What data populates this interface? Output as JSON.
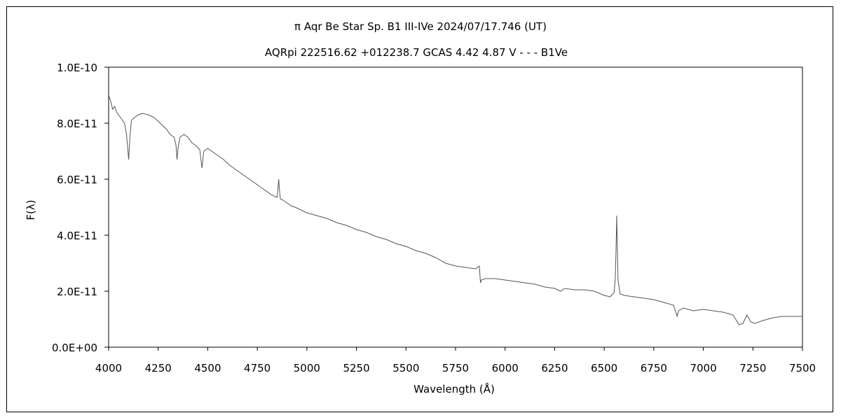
{
  "chart_data": {
    "type": "line",
    "title": "π  Aqr    Be Star    Sp. B1 III-IVe    2024/07/17.746 (UT)",
    "subtitle": "AQRpi 222516.62 +012238.7 GCAS 4.42 4.87 V - - - B1Ve",
    "xlabel": "Wavelength (Å)",
    "ylabel": "F(λ)",
    "xlim": [
      4000,
      7500
    ],
    "ylim": [
      0,
      1e-10
    ],
    "x_ticks": [
      "4000",
      "4250",
      "4500",
      "4750",
      "5000",
      "5250",
      "5500",
      "5750",
      "6000",
      "6250",
      "6500",
      "6750",
      "7000",
      "7250",
      "7500"
    ],
    "y_ticks": [
      "0.0E+00",
      "2.0E-11",
      "4.0E-11",
      "6.0E-11",
      "8.0E-11",
      "1.0E-10"
    ],
    "grid": false,
    "series": [
      {
        "color": "#555555",
        "x": [
          4000,
          4010,
          4020,
          4030,
          4040,
          4050,
          4060,
          4070,
          4080,
          4090,
          4095,
          4101,
          4107,
          4115,
          4130,
          4150,
          4170,
          4200,
          4230,
          4260,
          4290,
          4310,
          4330,
          4340,
          4345,
          4350,
          4360,
          4380,
          4400,
          4420,
          4440,
          4460,
          4471,
          4480,
          4500,
          4520,
          4550,
          4580,
          4610,
          4640,
          4670,
          4700,
          4730,
          4760,
          4790,
          4820,
          4850,
          4858,
          4862,
          4866,
          4880,
          4900,
          4920,
          4940,
          4970,
          5000,
          5050,
          5100,
          5150,
          5200,
          5250,
          5300,
          5350,
          5400,
          5450,
          5500,
          5550,
          5600,
          5650,
          5700,
          5750,
          5800,
          5850,
          5870,
          5876,
          5880,
          5900,
          5920,
          5950,
          6000,
          6050,
          6100,
          6150,
          6200,
          6250,
          6280,
          6300,
          6350,
          6400,
          6450,
          6500,
          6530,
          6550,
          6556,
          6560,
          6563,
          6566,
          6570,
          6580,
          6600,
          6650,
          6700,
          6750,
          6800,
          6850,
          6868,
          6875,
          6900,
          6950,
          7000,
          7050,
          7100,
          7150,
          7180,
          7200,
          7220,
          7240,
          7260,
          7280,
          7300,
          7350,
          7400,
          7450,
          7500
        ],
        "y": [
          9e-11,
          8.8e-11,
          8.5e-11,
          8.6e-11,
          8.4e-11,
          8.3e-11,
          8.2e-11,
          8.1e-11,
          8e-11,
          7.6e-11,
          7.2e-11,
          6.7e-11,
          7.5e-11,
          8.1e-11,
          8.2e-11,
          8.3e-11,
          8.35e-11,
          8.3e-11,
          8.2e-11,
          8e-11,
          7.8e-11,
          7.6e-11,
          7.5e-11,
          7.2e-11,
          6.7e-11,
          7.1e-11,
          7.5e-11,
          7.6e-11,
          7.5e-11,
          7.3e-11,
          7.2e-11,
          7.05e-11,
          6.4e-11,
          7e-11,
          7.1e-11,
          7e-11,
          6.85e-11,
          6.7e-11,
          6.5e-11,
          6.35e-11,
          6.2e-11,
          6.05e-11,
          5.9e-11,
          5.75e-11,
          5.6e-11,
          5.45e-11,
          5.35e-11,
          6e-11,
          5.6e-11,
          5.3e-11,
          5.25e-11,
          5.15e-11,
          5.05e-11,
          5e-11,
          4.9e-11,
          4.8e-11,
          4.7e-11,
          4.6e-11,
          4.45e-11,
          4.35e-11,
          4.2e-11,
          4.1e-11,
          3.95e-11,
          3.85e-11,
          3.7e-11,
          3.6e-11,
          3.45e-11,
          3.35e-11,
          3.2e-11,
          3e-11,
          2.9e-11,
          2.85e-11,
          2.8e-11,
          2.9e-11,
          2.3e-11,
          2.4e-11,
          2.45e-11,
          2.45e-11,
          2.45e-11,
          2.4e-11,
          2.35e-11,
          2.3e-11,
          2.25e-11,
          2.15e-11,
          2.1e-11,
          2e-11,
          2.1e-11,
          2.05e-11,
          2.05e-11,
          2e-11,
          1.85e-11,
          1.8e-11,
          1.95e-11,
          2.5e-11,
          3.6e-11,
          4.7e-11,
          3.6e-11,
          2.4e-11,
          1.9e-11,
          1.85e-11,
          1.8e-11,
          1.75e-11,
          1.7e-11,
          1.6e-11,
          1.5e-11,
          1.1e-11,
          1.3e-11,
          1.4e-11,
          1.3e-11,
          1.35e-11,
          1.3e-11,
          1.25e-11,
          1.15e-11,
          8e-12,
          8.5e-12,
          1.15e-11,
          9e-12,
          8.5e-12,
          9e-12,
          9.5e-12,
          1.05e-11,
          1.1e-11,
          1.1e-11,
          1.1e-11
        ]
      }
    ]
  }
}
